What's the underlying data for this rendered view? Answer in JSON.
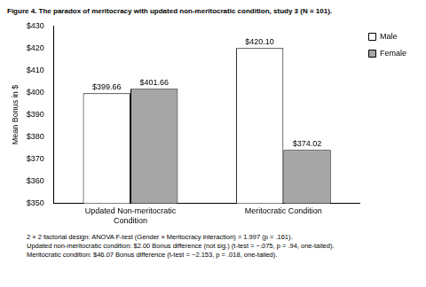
{
  "chart_data": {
    "type": "bar",
    "title": "Figure 4. The paradox of meritocracy with updated non-meritocratic condition, study 3 (N = 101).",
    "y_label": "Mean Bonus in $",
    "categories": [
      "Updated Non-meritocratic Condition",
      "Meritocratic Condition"
    ],
    "series": [
      {
        "name": "Male",
        "color": "#ffffff",
        "values": [
          399.66,
          420.1
        ],
        "value_labels": [
          "$399.66",
          "$420.10"
        ]
      },
      {
        "name": "Female",
        "color": "#a6a6a6",
        "values": [
          401.66,
          374.02
        ],
        "value_labels": [
          "$401.66",
          "$374.02"
        ]
      }
    ],
    "ylim": [
      350,
      430
    ],
    "yticks": [
      {
        "value": 350,
        "label": "$350"
      },
      {
        "value": 360,
        "label": "$360"
      },
      {
        "value": 370,
        "label": "$370"
      },
      {
        "value": 380,
        "label": "$380"
      },
      {
        "value": 390,
        "label": "$390"
      },
      {
        "value": 400,
        "label": "$400"
      },
      {
        "value": 410,
        "label": "$410"
      },
      {
        "value": 420,
        "label": "$420"
      },
      {
        "value": 430,
        "label": "$430"
      }
    ],
    "grid": false,
    "legend": "right",
    "data_labels": true,
    "annotations": [
      "2 × 2 factorial design: ANOVA F-test (Gender × Meritocracy interaction) = 1.997 (p = .161).",
      "Updated non-meritocratic condition: $2.00 Bonus difference (not sig.) (t-test = −.075, p = .94, one-tailed).",
      "Meritocratic condition: $46.07 Bonus difference (t-test = −2.153, p = .018, one-tailed)."
    ]
  }
}
